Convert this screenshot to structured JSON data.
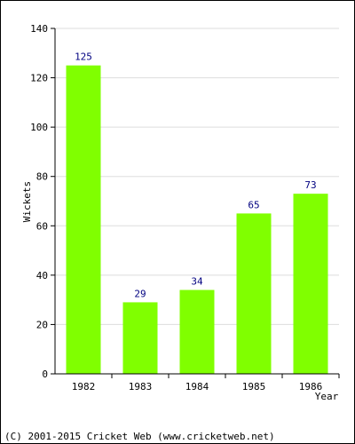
{
  "chart_data": {
    "type": "bar",
    "title": "",
    "xlabel": "Year",
    "ylabel": "Wickets",
    "categories": [
      "1982",
      "1983",
      "1984",
      "1985",
      "1986"
    ],
    "values": [
      125,
      29,
      34,
      65,
      73
    ],
    "ylim": [
      0,
      140
    ],
    "yticks": [
      "0",
      "20",
      "40",
      "60",
      "80",
      "100",
      "120",
      "140"
    ],
    "grid": true,
    "legend": "none",
    "colors": {
      "bar": "#80ff00",
      "data_label": "#000080",
      "axis": "#000000",
      "grid": "#dddddd"
    }
  },
  "footer": {
    "copyright": "(C) 2001-2015 Cricket Web (www.cricketweb.net)"
  }
}
